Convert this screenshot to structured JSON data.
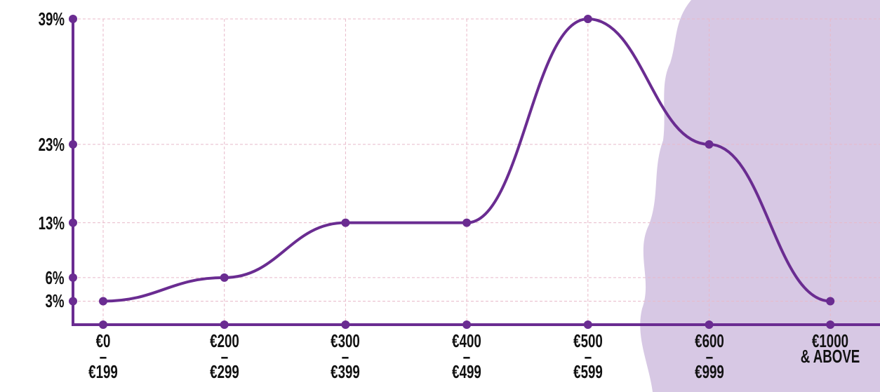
{
  "chart_data": {
    "type": "line",
    "categories": [
      "€0\n–\n€199",
      "€200\n–\n€299",
      "€300\n–\n€399",
      "€400\n–\n€499",
      "€500\n–\n€599",
      "€600\n–\n€999",
      "€1000\n& ABOVE"
    ],
    "values": [
      3,
      6,
      13,
      13,
      39,
      23,
      3
    ],
    "color": "#6a2c91",
    "ylim": [
      0,
      39
    ],
    "yticks": [
      {
        "value": 3,
        "label": "3%"
      },
      {
        "value": 6,
        "label": "6%"
      },
      {
        "value": 13,
        "label": "13%"
      },
      {
        "value": 23,
        "label": "23%"
      },
      {
        "value": 39,
        "label": "39%"
      }
    ],
    "grid": true
  }
}
